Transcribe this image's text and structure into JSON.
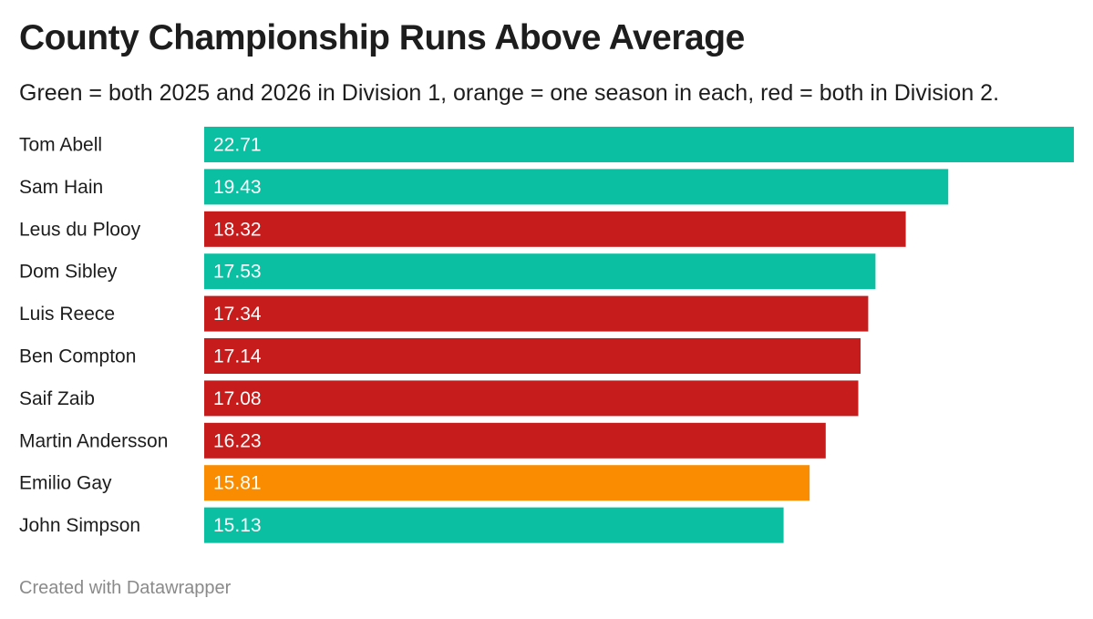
{
  "title": "County Championship Runs Above Average",
  "subtitle": "Green = both 2025 and 2026 in Division 1, orange = one season in each, red = both in Division 2.",
  "footer": "Created with Datawrapper",
  "colors": {
    "green": "#0bbfa2",
    "orange": "#f98c00",
    "red": "#c71c1c"
  },
  "chart_data": {
    "type": "bar",
    "orientation": "horizontal",
    "title": "County Championship Runs Above Average",
    "subtitle": "Green = both 2025 and 2026 in Division 1, orange = one season in each, red = both in Division 2.",
    "categories": [
      "Tom Abell",
      "Sam Hain",
      "Leus du Plooy",
      "Dom Sibley",
      "Luis Reece",
      "Ben Compton",
      "Saif Zaib",
      "Martin Andersson",
      "Emilio Gay",
      "John Simpson"
    ],
    "values": [
      22.71,
      19.43,
      18.32,
      17.53,
      17.34,
      17.14,
      17.08,
      16.23,
      15.81,
      15.13
    ],
    "labels": [
      "22.71",
      "19.43",
      "18.32",
      "17.53",
      "17.34",
      "17.14",
      "17.08",
      "16.23",
      "15.81",
      "15.13"
    ],
    "bar_colors": [
      "green",
      "green",
      "red",
      "green",
      "red",
      "red",
      "red",
      "red",
      "orange",
      "green"
    ],
    "xlim": [
      0,
      22.71
    ],
    "grid": false,
    "legend": "none"
  }
}
